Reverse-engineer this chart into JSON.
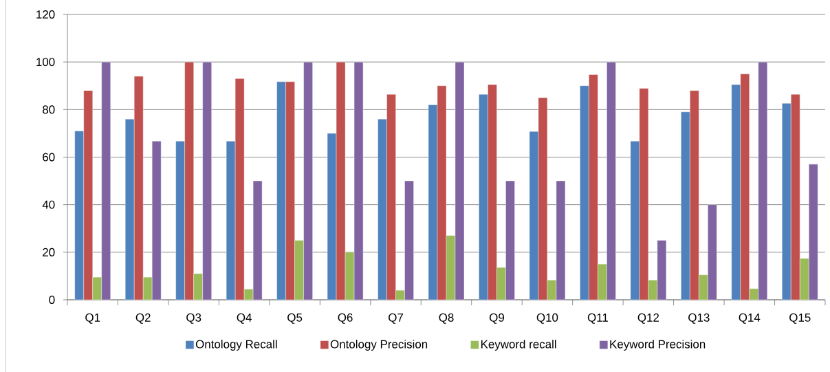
{
  "chart_data": {
    "type": "bar",
    "categories": [
      "Q1",
      "Q2",
      "Q3",
      "Q4",
      "Q5",
      "Q6",
      "Q7",
      "Q8",
      "Q9",
      "Q10",
      "Q11",
      "Q12",
      "Q13",
      "Q14",
      "Q15"
    ],
    "series": [
      {
        "name": "Ontology Recall",
        "color": "#4f81bd",
        "values": [
          71,
          76,
          66.7,
          66.7,
          91.7,
          70,
          76,
          82,
          86.4,
          70.8,
          90,
          66.7,
          79,
          90.5,
          82.6
        ]
      },
      {
        "name": "Ontology Precision",
        "color": "#c0504d",
        "values": [
          88,
          94,
          100,
          93,
          91.7,
          100,
          86.4,
          90,
          90.5,
          85,
          94.7,
          88.9,
          88,
          95,
          86.4
        ]
      },
      {
        "name": "Keyword recall",
        "color": "#9bbb59",
        "values": [
          9.5,
          9.5,
          11,
          4.5,
          25,
          20,
          4,
          27,
          13.6,
          8.3,
          15,
          8.3,
          10.5,
          4.7,
          17.4
        ]
      },
      {
        "name": "Keyword Precision",
        "color": "#8064a2",
        "values": [
          100,
          66.7,
          100,
          50,
          100,
          100,
          50,
          100,
          50,
          50,
          100,
          25,
          40,
          100,
          57
        ]
      }
    ],
    "ylim": [
      0,
      120
    ],
    "yticks": [
      0,
      20,
      40,
      60,
      80,
      100,
      120
    ],
    "grid": "y",
    "legend": "bottom"
  }
}
